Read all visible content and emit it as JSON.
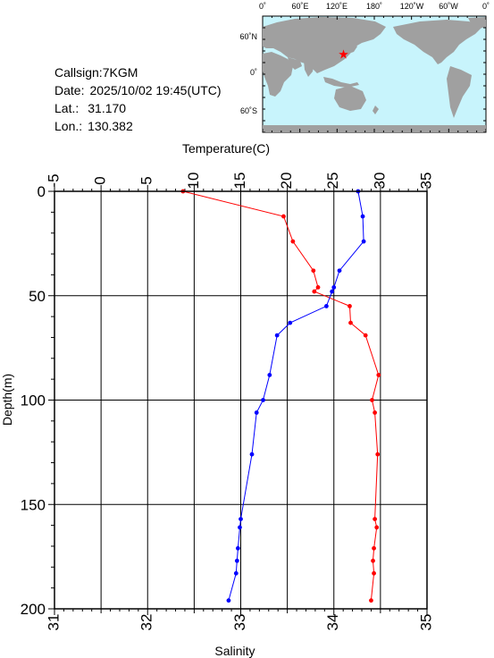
{
  "station": {
    "callsign_label": "Callsign:",
    "callsign": "7KGM",
    "date_label": "Date:",
    "date": "2025/10/02 19:45(UTC)",
    "lat_label": "Lat.:",
    "lat": "31.170",
    "lon_label": "Lon.:",
    "lon": "130.382"
  },
  "map": {
    "top_labels": [
      "0˚",
      "60˚E",
      "120˚E",
      "180˚",
      "120˚W",
      "60˚W",
      "0˚"
    ],
    "left_labels": [
      "60˚N",
      "0˚",
      "60˚S"
    ],
    "ocean_color": "#c8f4fc",
    "land_color": "#a0a0a0",
    "marker_color": "#ff0000",
    "marker": {
      "lat": 31.17,
      "lon": 130.382
    }
  },
  "chart_data": {
    "type": "line",
    "title": "",
    "top_axis": {
      "label": "Temperature(C)",
      "range": [
        -5,
        35
      ],
      "ticks": [
        -5,
        0,
        5,
        10,
        15,
        20,
        25,
        30,
        35
      ]
    },
    "bottom_axis": {
      "label": "Salinity",
      "range": [
        31,
        35
      ],
      "ticks": [
        "31",
        "32",
        "33",
        "34",
        "35"
      ]
    },
    "y_axis": {
      "label": "Depth(m)",
      "range": [
        0,
        200
      ],
      "ticks": [
        0,
        50,
        100,
        150,
        200
      ],
      "inverted": true
    },
    "grid": true,
    "series": [
      {
        "color": "#ff0000",
        "axis": "top",
        "points": [
          [
            8.8,
            0
          ],
          [
            19.6,
            12
          ],
          [
            20.6,
            24
          ],
          [
            22.8,
            38
          ],
          [
            23.3,
            46
          ],
          [
            22.9,
            48
          ],
          [
            26.7,
            55
          ],
          [
            26.8,
            63
          ],
          [
            28.4,
            69
          ],
          [
            29.8,
            88
          ],
          [
            29.1,
            100
          ],
          [
            29.4,
            106
          ],
          [
            29.7,
            126
          ],
          [
            29.4,
            157
          ],
          [
            29.6,
            161
          ],
          [
            29.3,
            171
          ],
          [
            29.2,
            177
          ],
          [
            29.3,
            183
          ],
          [
            29.0,
            196
          ]
        ]
      },
      {
        "color": "#0000ff",
        "axis": "bottom",
        "points": [
          [
            34.26,
            0
          ],
          [
            34.31,
            12
          ],
          [
            34.32,
            24
          ],
          [
            34.06,
            38
          ],
          [
            34.0,
            46
          ],
          [
            33.98,
            48
          ],
          [
            33.92,
            55
          ],
          [
            33.53,
            63
          ],
          [
            33.39,
            69
          ],
          [
            33.31,
            88
          ],
          [
            33.24,
            100
          ],
          [
            33.17,
            106
          ],
          [
            33.12,
            126
          ],
          [
            33.0,
            157
          ],
          [
            32.99,
            161
          ],
          [
            32.97,
            171
          ],
          [
            32.96,
            177
          ],
          [
            32.95,
            183
          ],
          [
            32.87,
            196
          ]
        ]
      }
    ]
  }
}
